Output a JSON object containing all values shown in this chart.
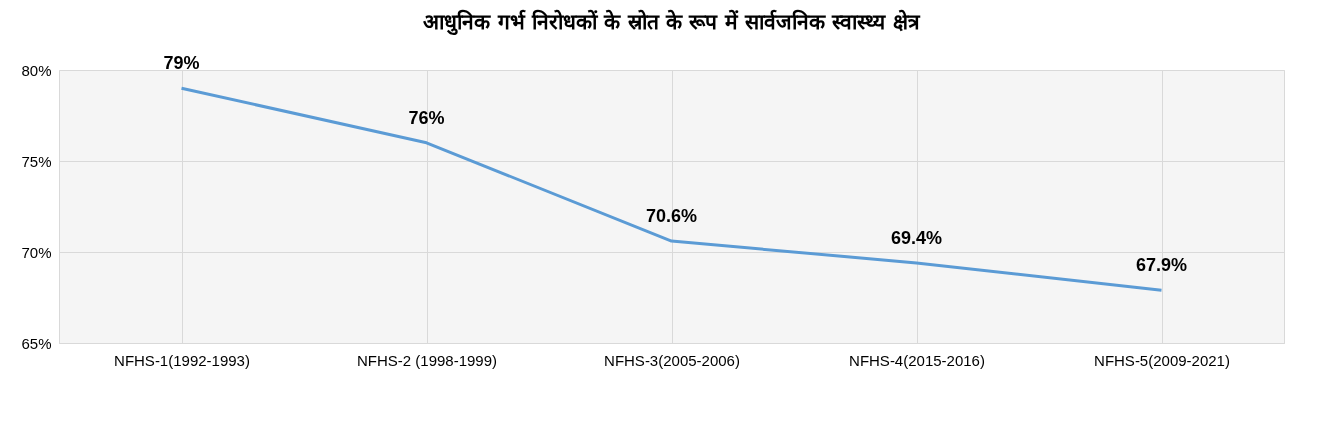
{
  "chart_data": {
    "type": "line",
    "title": "आधुनिक गर्भ निरोधकों के स्रोत के रूप में सार्वजनिक स्वास्थ्य क्षेत्र",
    "categories": [
      "NFHS-1(1992-1993)",
      "NFHS-2 (1998-1999)",
      "NFHS-3(2005-2006)",
      "NFHS-4(2015-2016)",
      "NFHS-5(2009-2021)"
    ],
    "series": [
      {
        "color": "#5b9bd5",
        "values": [
          79,
          76,
          70.6,
          69.4,
          67.9
        ],
        "value_labels": [
          "79%",
          "76%",
          "70.6%",
          "69.4%",
          "67.9%"
        ]
      }
    ],
    "ylim": [
      65,
      80
    ],
    "yticks": [
      {
        "value": 65,
        "label": "65%"
      },
      {
        "value": 70,
        "label": "70%"
      },
      {
        "value": 75,
        "label": "75%"
      },
      {
        "value": 80,
        "label": "80%"
      }
    ],
    "grid": true,
    "marker": "none",
    "line_style": "solid"
  }
}
